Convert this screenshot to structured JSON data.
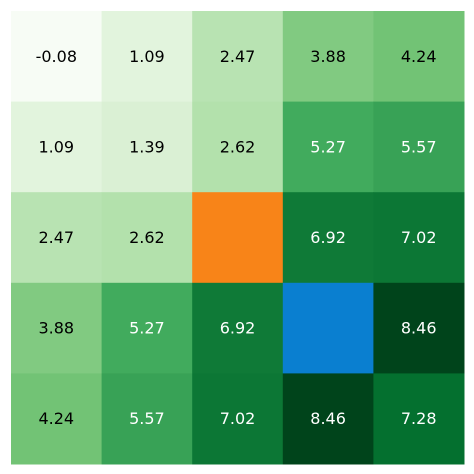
{
  "chart_data": {
    "type": "heatmap",
    "title": "",
    "xlabel": "",
    "ylabel": "",
    "x_categories": [
      "",
      "",
      "",
      "",
      ""
    ],
    "y_categories": [
      "",
      "",
      "",
      "",
      ""
    ],
    "matrix": [
      [
        -0.08,
        1.09,
        2.47,
        3.88,
        4.24
      ],
      [
        1.09,
        1.39,
        2.62,
        5.27,
        5.57
      ],
      [
        2.47,
        2.62,
        null,
        6.92,
        7.02
      ],
      [
        3.88,
        5.27,
        6.92,
        null,
        8.46
      ],
      [
        4.24,
        5.57,
        7.02,
        8.46,
        7.28
      ]
    ],
    "labels": [
      [
        "-0.08",
        "1.09",
        "2.47",
        "3.88",
        "4.24"
      ],
      [
        "1.09",
        "1.39",
        "2.62",
        "5.27",
        "5.57"
      ],
      [
        "2.47",
        "2.62",
        "",
        "6.92",
        "7.02"
      ],
      [
        "3.88",
        "5.27",
        "6.92",
        "",
        "8.46"
      ],
      [
        "4.24",
        "5.57",
        "7.02",
        "8.46",
        "7.28"
      ]
    ],
    "colormap": "Greens",
    "value_range": [
      -0.08,
      8.46
    ],
    "special_cells": [
      {
        "row": 2,
        "col": 2,
        "color": "#f88418"
      },
      {
        "row": 3,
        "col": 3,
        "color": "#0a7fd0"
      }
    ],
    "grid": false,
    "legend": "none"
  }
}
